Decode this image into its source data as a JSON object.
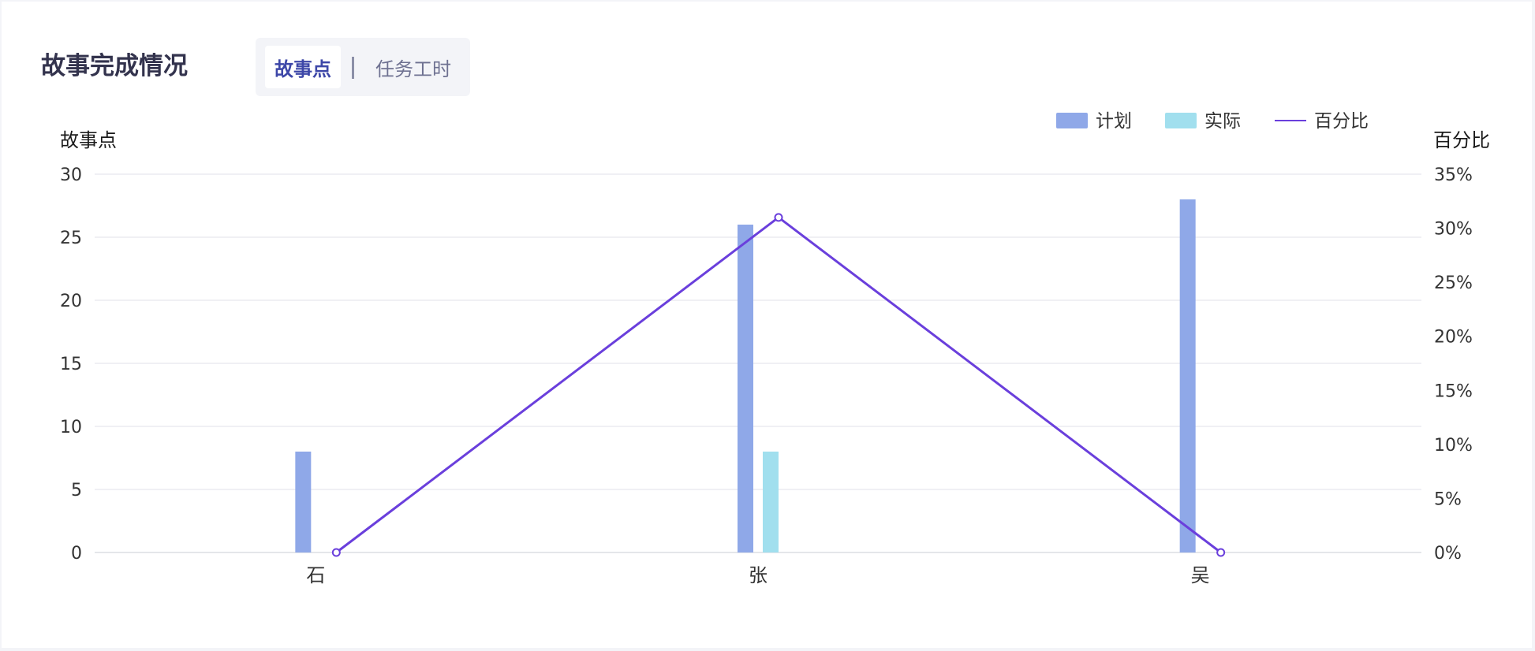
{
  "card": {
    "title": "故事完成情况",
    "tabs": [
      {
        "label": "故事点",
        "active": true
      },
      {
        "label": "任务工时",
        "active": false
      }
    ]
  },
  "chart_data": {
    "type": "bar",
    "categories": [
      "石",
      "张",
      "吴"
    ],
    "series": [
      {
        "name": "计划",
        "type": "bar",
        "axis": "left",
        "color": "#8fa8e8",
        "values": [
          8,
          26,
          28
        ]
      },
      {
        "name": "实际",
        "type": "bar",
        "axis": "left",
        "color": "#a1dfee",
        "values": [
          0,
          8,
          0
        ]
      },
      {
        "name": "百分比",
        "type": "line",
        "axis": "right",
        "color": "#6a3fdc",
        "values": [
          0,
          31,
          0
        ]
      }
    ],
    "ylabel_left": "故事点",
    "ylabel_right": "百分比",
    "ylim_left": [
      0,
      30
    ],
    "yticks_left": [
      "0",
      "5",
      "10",
      "15",
      "20",
      "25",
      "30"
    ],
    "ylim_right": [
      0,
      35
    ],
    "yticks_right": [
      "0%",
      "5%",
      "10%",
      "15%",
      "20%",
      "25%",
      "30%",
      "35%"
    ],
    "grid": true,
    "legend_position": "top-right"
  }
}
